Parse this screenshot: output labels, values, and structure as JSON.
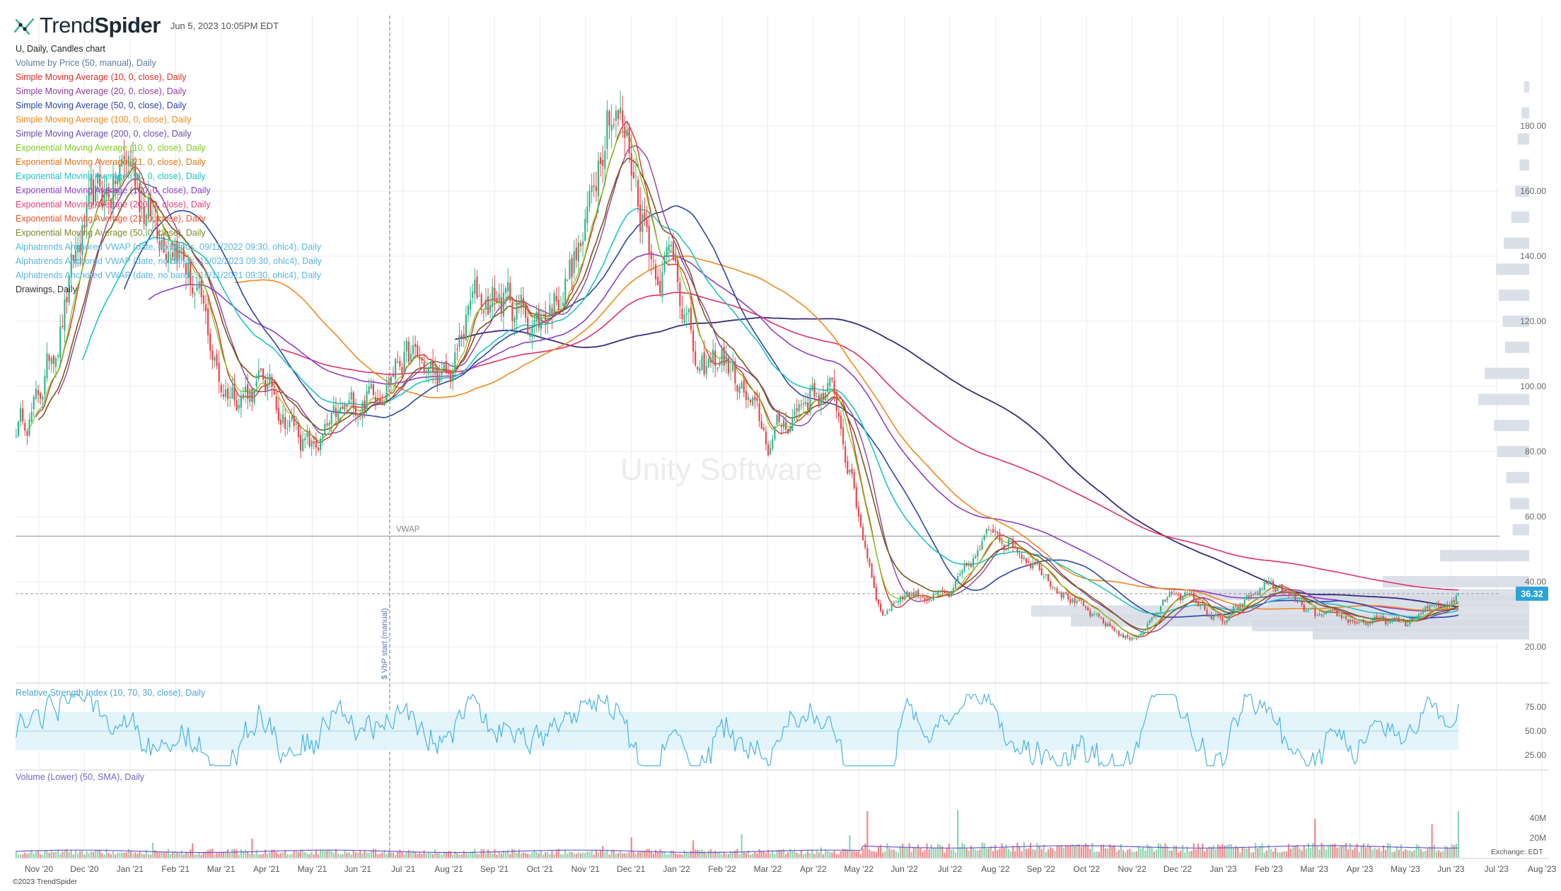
{
  "app": {
    "brand_light": "Trend",
    "brand_bold": "Spider",
    "timestamp": "Jun 5, 2023 10:05PM EDT",
    "copyright": "©2023 TrendSpider",
    "watermark": "Unity Software",
    "exchange": "Exchange: EDT"
  },
  "colors": {
    "up": "#36b58a",
    "down": "#e8474d",
    "grid": "#ececec",
    "rsi_band": "#e3f4fa",
    "rsi_line": "#4bb3e0",
    "price_tag": "#2ba3d6",
    "vwap_line": "#8c8c8c",
    "vbp_bars": "#d5dae4"
  },
  "legend": [
    {
      "text": "U, Daily, Candles chart",
      "color": "#222222"
    },
    {
      "text": "Volume by Price (50, manual), Daily",
      "color": "#5b7aa0"
    },
    {
      "text": "Simple Moving Average (10, 0, close), Daily",
      "color": "#d9302c"
    },
    {
      "text": "Simple Moving Average (20, 0, close), Daily",
      "color": "#8e3fa3"
    },
    {
      "text": "Simple Moving Average (50, 0, close), Daily",
      "color": "#2c46a5"
    },
    {
      "text": "Simple Moving Average (100, 0, close), Daily",
      "color": "#f08a1e"
    },
    {
      "text": "Simple Moving Average (200, 0, close), Daily",
      "color": "#6b4ea8"
    },
    {
      "text": "Exponential Moving Average (10, 0, close), Daily",
      "color": "#7ccf1f"
    },
    {
      "text": "Exponential Moving Average (21, 0, close), Daily",
      "color": "#e0751d"
    },
    {
      "text": "Exponential Moving Average (50, 0, close), Daily",
      "color": "#1fc4c4"
    },
    {
      "text": "Exponential Moving Average (100, 0, close), Daily",
      "color": "#8b40c8"
    },
    {
      "text": "Exponential Moving Average (200, 0, close), Daily",
      "color": "#e0407a"
    },
    {
      "text": "Exponential Moving Average (21, 0, close), Daily",
      "color": "#e8542a"
    },
    {
      "text": "Exponential Moving Average (50, 0, close), Daily",
      "color": "#7a8a2a"
    },
    {
      "text": "Alphatrends Anchored VWAP (date, no bands, 09/11/2022 09:30, ohlc4), Daily",
      "color": "#5cb6de"
    },
    {
      "text": "Alphatrends Anchored VWAP (date, no bands, 15/02/2023 09:30, ohlc4), Daily",
      "color": "#5cb6de"
    },
    {
      "text": "Alphatrends Anchored VWAP (date, no bands, 16/11/2021 09:30, ohlc4), Daily",
      "color": "#5cb6de"
    },
    {
      "text": "Drawings, Daily",
      "color": "#333333"
    }
  ],
  "price_axis": {
    "ticks": [
      "180.00",
      "160.00",
      "140.00",
      "120.00",
      "100.00",
      "80.00",
      "60.00",
      "40.00",
      "20.00"
    ],
    "last_price": "36.32"
  },
  "annotations": {
    "vwap_label": "VWAP",
    "vbp_start": "$ VbP start (manual)"
  },
  "rsi": {
    "label": "Relative Strength Index (10, 70, 30, close), Daily",
    "ticks": [
      "75.00",
      "50.00",
      "25.00"
    ]
  },
  "volume": {
    "label": "Volume (Lower) (50, SMA), Daily",
    "ticks": [
      "40M",
      "20M"
    ]
  },
  "time_axis": {
    "labels": [
      "Nov '20",
      "Dec '20",
      "Jan '21",
      "Feb '21",
      "Mar '21",
      "Apr '21",
      "May '21",
      "Jun '21",
      "Jul '21",
      "Aug '21",
      "Sep '21",
      "Oct '21",
      "Nov '21",
      "Dec '21",
      "Jan '22",
      "Feb '22",
      "Mar '22",
      "Apr '22",
      "May '22",
      "Jun '22",
      "Jul '22",
      "Aug '22",
      "Sep '22",
      "Oct '22",
      "Nov '22",
      "Dec '22",
      "Jan '23",
      "Feb '23",
      "Mar '23",
      "Apr '23",
      "May '23",
      "Jun '23",
      "Jul '23",
      "Aug '23"
    ]
  },
  "chart_data": {
    "type": "candlestick",
    "symbol": "U",
    "interval": "Daily",
    "price_range": [
      13,
      197
    ],
    "price_keypoints": [
      [
        "Oct '20",
        88
      ],
      [
        "Nov '20",
        96
      ],
      [
        "Dec '20",
        148
      ],
      [
        "Jan '21",
        170
      ],
      [
        "Jan '21",
        150
      ],
      [
        "Feb '21",
        150
      ],
      [
        "Feb '21",
        125
      ],
      [
        "Mar '21",
        100
      ],
      [
        "Apr '21",
        100
      ],
      [
        "May '21",
        80
      ],
      [
        "Jun '21",
        95
      ],
      [
        "Jul '21",
        110
      ],
      [
        "Aug '21",
        100
      ],
      [
        "Aug '21",
        125
      ],
      [
        "Sep '21",
        128
      ],
      [
        "Oct '21",
        120
      ],
      [
        "Nov '21",
        145
      ],
      [
        "Nov '21",
        195
      ],
      [
        "Dec '21",
        170
      ],
      [
        "Dec '21",
        140
      ],
      [
        "Jan '22",
        140
      ],
      [
        "Jan '22",
        100
      ],
      [
        "Feb '22",
        110
      ],
      [
        "Mar '22",
        82
      ],
      [
        "Apr '22",
        100
      ],
      [
        "Apr '22",
        95
      ],
      [
        "May '22",
        60
      ],
      [
        "May '22",
        30
      ],
      [
        "Jun '22",
        37
      ],
      [
        "Jul '22",
        35
      ],
      [
        "Aug '22",
        57
      ],
      [
        "Sep '22",
        45
      ],
      [
        "Oct '22",
        30
      ],
      [
        "Nov '22",
        22
      ],
      [
        "Dec '22",
        38
      ],
      [
        "Jan '23",
        27
      ],
      [
        "Feb '23",
        40
      ],
      [
        "Mar '23",
        29
      ],
      [
        "Apr '23",
        28
      ],
      [
        "May '23",
        27
      ],
      [
        "Jun '23",
        36.32
      ]
    ],
    "vwap_level": 54,
    "dashed_price_line": 36.32,
    "rsi_bands": [
      30,
      70
    ],
    "rsi_last": 78,
    "volume_peaks_M": {
      "May '22": 47,
      "Jul '22": 48,
      "Jun '23": 47
    },
    "volume_by_price": [
      {
        "price": 192,
        "width": 0.08
      },
      {
        "price": 184,
        "width": 0.12
      },
      {
        "price": 176,
        "width": 0.18
      },
      {
        "price": 168,
        "width": 0.15
      },
      {
        "price": 160,
        "width": 0.22
      },
      {
        "price": 152,
        "width": 0.28
      },
      {
        "price": 144,
        "width": 0.4
      },
      {
        "price": 136,
        "width": 0.52
      },
      {
        "price": 128,
        "width": 0.48
      },
      {
        "price": 120,
        "width": 0.42
      },
      {
        "price": 112,
        "width": 0.38
      },
      {
        "price": 104,
        "width": 0.7
      },
      {
        "price": 96,
        "width": 0.8
      },
      {
        "price": 88,
        "width": 0.55
      },
      {
        "price": 80,
        "width": 0.5
      },
      {
        "price": 72,
        "width": 0.36
      },
      {
        "price": 64,
        "width": 0.3
      },
      {
        "price": 56,
        "width": 0.26
      },
      {
        "price": 48,
        "width": 1.4
      },
      {
        "price": 40,
        "width": 2.3
      },
      {
        "price": 34,
        "width": 4.1
      },
      {
        "price": 28,
        "width": 7.2
      },
      {
        "price": 24,
        "width": 3.4
      }
    ]
  }
}
